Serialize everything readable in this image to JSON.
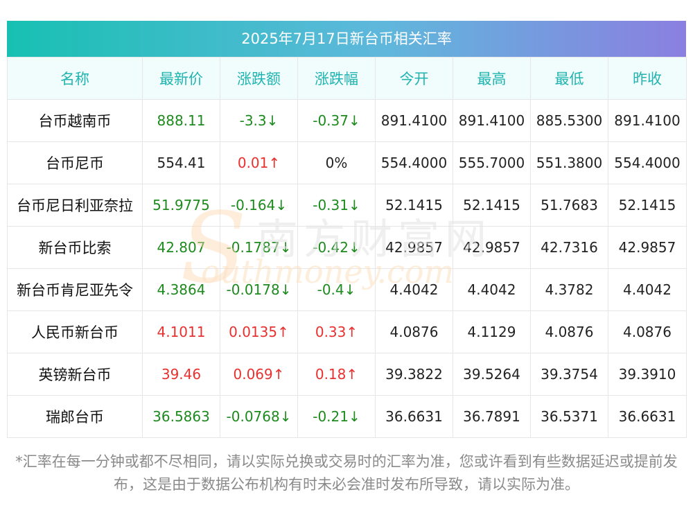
{
  "title": "2025年7月17日新台币相关汇率",
  "columns": [
    "名称",
    "最新价",
    "涨跌额",
    "涨跌幅",
    "今开",
    "最高",
    "最低",
    "昨收"
  ],
  "rows": [
    {
      "name": "台币越南币",
      "latest": "888.11",
      "change": "-3.3↓",
      "pct": "-0.37↓",
      "open": "891.4100",
      "high": "891.4100",
      "low": "885.5300",
      "prev": "891.4100",
      "dir": "down",
      "pct_dir": "down"
    },
    {
      "name": "台币尼币",
      "latest": "554.41",
      "change": "0.01↑",
      "pct": "0%",
      "open": "554.4000",
      "high": "555.7000",
      "low": "551.3800",
      "prev": "554.4000",
      "dir": "flat",
      "change_dir": "up",
      "pct_dir": "flat"
    },
    {
      "name": "台币尼日利亚奈拉",
      "latest": "51.9775",
      "change": "-0.164↓",
      "pct": "-0.31↓",
      "open": "52.1415",
      "high": "52.1415",
      "low": "51.7683",
      "prev": "52.1415",
      "dir": "down",
      "pct_dir": "down"
    },
    {
      "name": "新台币比索",
      "latest": "42.807",
      "change": "-0.1787↓",
      "pct": "-0.42↓",
      "open": "42.9857",
      "high": "42.9857",
      "low": "42.7316",
      "prev": "42.9857",
      "dir": "down",
      "pct_dir": "down"
    },
    {
      "name": "新台币肯尼亚先令",
      "latest": "4.3864",
      "change": "-0.0178↓",
      "pct": "-0.4↓",
      "open": "4.4042",
      "high": "4.4042",
      "low": "4.3782",
      "prev": "4.4042",
      "dir": "down",
      "pct_dir": "down"
    },
    {
      "name": "人民币新台币",
      "latest": "4.1011",
      "change": "0.0135↑",
      "pct": "0.33↑",
      "open": "4.0876",
      "high": "4.1129",
      "low": "4.0876",
      "prev": "4.0876",
      "dir": "up",
      "pct_dir": "up"
    },
    {
      "name": "英镑新台币",
      "latest": "39.46",
      "change": "0.069↑",
      "pct": "0.18↑",
      "open": "39.3822",
      "high": "39.5264",
      "low": "39.3754",
      "prev": "39.3910",
      "dir": "up",
      "pct_dir": "up"
    },
    {
      "name": "瑞郎台币",
      "latest": "36.5863",
      "change": "-0.0768↓",
      "pct": "-0.21↓",
      "open": "36.6631",
      "high": "36.7891",
      "low": "36.5371",
      "prev": "36.6631",
      "dir": "down",
      "pct_dir": "down"
    }
  ],
  "watermark": {
    "cn": "南方财富网",
    "en": "outhmoney.com",
    "letter": "S"
  },
  "footnote": "*汇率在每一分钟或都不尽相同，请以实际兑换或交易时的汇率为准，您或许看到有些数据延迟或提前发布，这是由于数据公布机构有时未必会准时发布所导致，请以实际为准。",
  "colors": {
    "up": "#e8312f",
    "down": "#1d8a1d",
    "header_text": "#20b4b0",
    "gradient_start": "#17c0b2",
    "gradient_end": "#8b7fe0"
  }
}
